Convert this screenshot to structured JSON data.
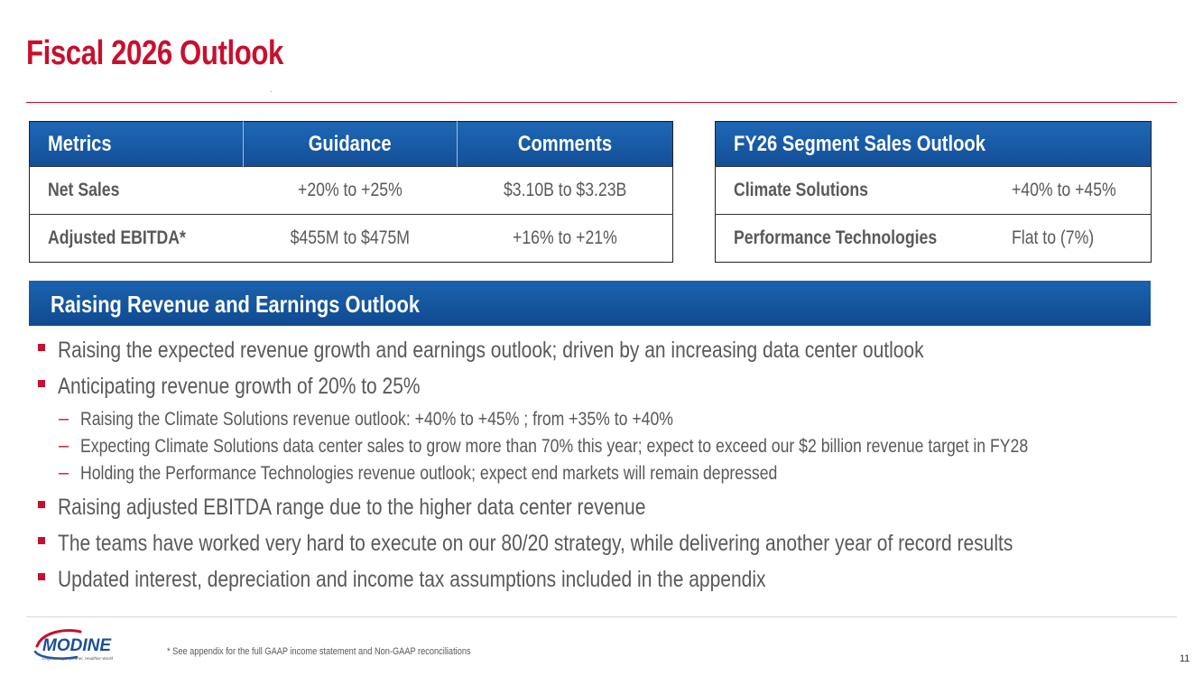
{
  "slide": {
    "title": "Fiscal 2026 Outlook"
  },
  "metrics_table": {
    "headers": [
      "Metrics",
      "Guidance",
      "Comments"
    ],
    "rows": [
      {
        "metric": "Net Sales",
        "guidance": "+20% to +25%",
        "comment": "$3.10B to $3.23B"
      },
      {
        "metric": "Adjusted EBITDA*",
        "guidance": "$455M to $475M",
        "comment": "+16% to +21%"
      }
    ]
  },
  "segment_table": {
    "header": "FY26 Segment Sales Outlook",
    "rows": [
      {
        "segment": "Climate Solutions",
        "value": "+40% to +45%"
      },
      {
        "segment": "Performance Technologies",
        "value": "Flat to (7%)"
      }
    ]
  },
  "banner": {
    "title": "Raising Revenue and Earnings Outlook"
  },
  "bullets": [
    {
      "level": 1,
      "text": "Raising the expected revenue growth and earnings outlook; driven by an increasing data center outlook"
    },
    {
      "level": 1,
      "text": "Anticipating revenue growth of 20% to 25%"
    },
    {
      "level": 2,
      "text": "Raising the Climate Solutions revenue outlook:  +40% to +45% ; from +35% to +40%"
    },
    {
      "level": 2,
      "text": "Expecting Climate Solutions data center sales to grow more than 70% this year; expect to exceed our $2 billion revenue target in FY28"
    },
    {
      "level": 2,
      "text": "Holding the Performance Technologies revenue outlook; expect end markets will remain depressed"
    },
    {
      "level": 1,
      "text": "Raising adjusted EBITDA range due to the higher data center revenue"
    },
    {
      "level": 1,
      "text": "The teams have worked very hard to execute on our 80/20 strategy, while delivering another year of record results"
    },
    {
      "level": 1,
      "text": "Updated interest, depreciation and income tax assumptions included in the appendix"
    }
  ],
  "footer": {
    "logo_text": "MODINE",
    "logo_tagline": "Engineering a Cleaner, Healthier World",
    "footnote": "* See appendix for the full GAAP income statement and Non-GAAP reconciliations",
    "page_number": "11"
  },
  "colors": {
    "accent_red": "#c8102e",
    "header_blue": "#134e97",
    "body_text": "#595959"
  }
}
